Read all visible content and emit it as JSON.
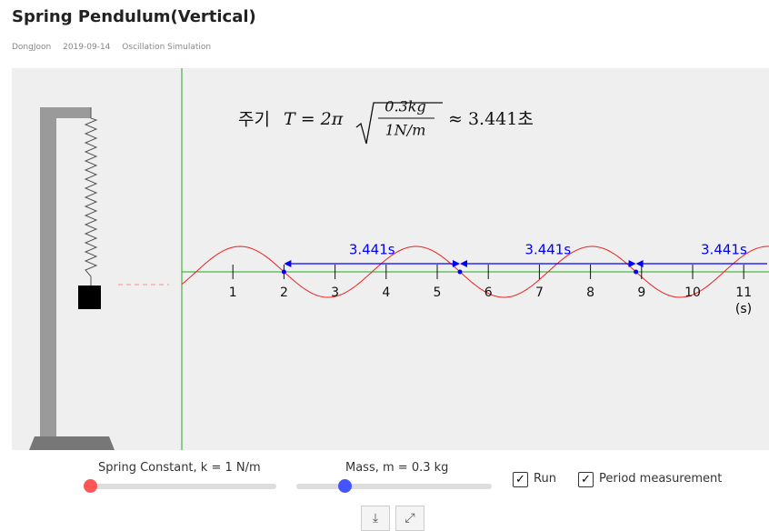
{
  "header": {
    "title": "Spring Pendulum(Vertical)",
    "meta": [
      "DongJoon",
      "2019-09-14",
      "Oscillation Simulation"
    ]
  },
  "simulation": {
    "formula": {
      "prefix": "주기",
      "lhs": "T = 2π",
      "numerator": "0.3kg",
      "denominator": "1N/m",
      "result": "≈ 3.441초"
    },
    "time_ticks": [
      "1",
      "2",
      "3",
      "4",
      "5",
      "6",
      "7",
      "8",
      "9",
      "10",
      "11"
    ],
    "time_unit": "(s)",
    "period_labels": [
      "3.441s",
      "3.441s",
      "3.441s"
    ]
  },
  "controls": {
    "spring_label": "Spring Constant, k = 1 N/m",
    "mass_label": "Mass, m = 0.3 kg",
    "run": "Run",
    "period": "Period measurement"
  }
}
